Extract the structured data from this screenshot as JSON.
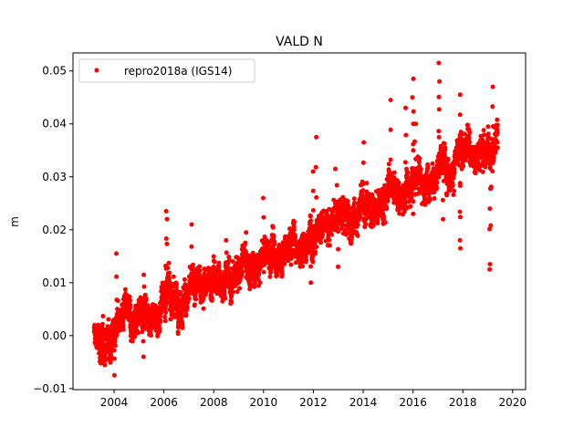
{
  "chart_data": {
    "type": "scatter",
    "title": "VALD N",
    "xlabel": "",
    "ylabel": "m",
    "xlim": [
      2002.35,
      2020.52
    ],
    "ylim": [
      -0.0102,
      0.0534
    ],
    "xticks": [
      2004,
      2006,
      2008,
      2010,
      2012,
      2014,
      2016,
      2018,
      2020
    ],
    "xtick_labels": [
      "2004",
      "2006",
      "2008",
      "2010",
      "2012",
      "2014",
      "2016",
      "2018",
      "2020"
    ],
    "yticks": [
      -0.01,
      0.0,
      0.01,
      0.02,
      0.03,
      0.04,
      0.05
    ],
    "ytick_labels": [
      "−0.01",
      "0.00",
      "0.01",
      "0.02",
      "0.03",
      "0.04",
      "0.05"
    ],
    "grid": false,
    "legend": {
      "placement": "top-left",
      "entries": [
        "repro2018a (IGS14)"
      ]
    },
    "series": [
      {
        "name": "repro2018a (IGS14)",
        "color": "#ff0000",
        "marker": "dot",
        "note": "dense daily series; approximate quarterly center values",
        "trend": [
          [
            2003.2,
            0.0
          ],
          [
            2003.5,
            -0.002
          ],
          [
            2003.75,
            -0.001
          ],
          [
            2004.0,
            0.002
          ],
          [
            2004.25,
            0.003
          ],
          [
            2004.5,
            0.004
          ],
          [
            2004.75,
            0.002
          ],
          [
            2005.0,
            0.004
          ],
          [
            2005.25,
            0.005
          ],
          [
            2005.5,
            0.004
          ],
          [
            2005.75,
            0.003
          ],
          [
            2006.0,
            0.008
          ],
          [
            2006.25,
            0.008
          ],
          [
            2006.5,
            0.007
          ],
          [
            2006.75,
            0.006
          ],
          [
            2007.0,
            0.008
          ],
          [
            2007.25,
            0.009
          ],
          [
            2007.5,
            0.01
          ],
          [
            2007.75,
            0.009
          ],
          [
            2008.0,
            0.011
          ],
          [
            2008.25,
            0.01
          ],
          [
            2008.5,
            0.011
          ],
          [
            2008.75,
            0.01
          ],
          [
            2009.0,
            0.013
          ],
          [
            2009.25,
            0.014
          ],
          [
            2009.5,
            0.012
          ],
          [
            2009.75,
            0.012
          ],
          [
            2010.0,
            0.015
          ],
          [
            2010.25,
            0.016
          ],
          [
            2010.5,
            0.015
          ],
          [
            2010.75,
            0.015
          ],
          [
            2011.0,
            0.017
          ],
          [
            2011.25,
            0.018
          ],
          [
            2011.5,
            0.016
          ],
          [
            2011.75,
            0.018
          ],
          [
            2012.0,
            0.02
          ],
          [
            2012.25,
            0.021
          ],
          [
            2012.5,
            0.02
          ],
          [
            2012.75,
            0.021
          ],
          [
            2013.0,
            0.023
          ],
          [
            2013.25,
            0.023
          ],
          [
            2013.5,
            0.021
          ],
          [
            2013.75,
            0.023
          ],
          [
            2014.0,
            0.025
          ],
          [
            2014.25,
            0.025
          ],
          [
            2014.5,
            0.023
          ],
          [
            2014.75,
            0.025
          ],
          [
            2015.0,
            0.028
          ],
          [
            2015.25,
            0.027
          ],
          [
            2015.5,
            0.026
          ],
          [
            2015.75,
            0.028
          ],
          [
            2016.0,
            0.03
          ],
          [
            2016.25,
            0.03
          ],
          [
            2016.5,
            0.028
          ],
          [
            2016.75,
            0.03
          ],
          [
            2017.0,
            0.032
          ],
          [
            2017.25,
            0.033
          ],
          [
            2017.5,
            0.031
          ],
          [
            2017.75,
            0.033
          ],
          [
            2018.0,
            0.035
          ],
          [
            2018.25,
            0.036
          ],
          [
            2018.5,
            0.034
          ],
          [
            2018.75,
            0.035
          ],
          [
            2019.0,
            0.035
          ],
          [
            2019.25,
            0.036
          ],
          [
            2019.4,
            0.038
          ]
        ],
        "outliers": [
          [
            2004.1,
            0.0155
          ],
          [
            2004.0,
            -0.0075
          ],
          [
            2005.2,
            0.0115
          ],
          [
            2005.2,
            -0.004
          ],
          [
            2006.1,
            0.0235
          ],
          [
            2006.1,
            0.022
          ],
          [
            2007.1,
            0.021
          ],
          [
            2008.5,
            0.018
          ],
          [
            2009.3,
            0.0195
          ],
          [
            2010.0,
            0.026
          ],
          [
            2011.2,
            0.0205
          ],
          [
            2011.9,
            0.01
          ],
          [
            2012.1,
            0.0375
          ],
          [
            2012.0,
            0.031
          ],
          [
            2012.9,
            0.0315
          ],
          [
            2013.0,
            0.013
          ],
          [
            2014.0,
            0.0365
          ],
          [
            2015.1,
            0.0445
          ],
          [
            2015.7,
            0.043
          ],
          [
            2016.0,
            0.0485
          ],
          [
            2016.0,
            0.045
          ],
          [
            2016.1,
            0.04
          ],
          [
            2016.0,
            0.023
          ],
          [
            2017.05,
            0.0515
          ],
          [
            2017.05,
            0.048
          ],
          [
            2017.2,
            0.022
          ],
          [
            2017.9,
            0.0455
          ],
          [
            2017.9,
            0.018
          ],
          [
            2017.9,
            0.0165
          ],
          [
            2019.2,
            0.047
          ],
          [
            2019.1,
            0.0135
          ],
          [
            2019.1,
            0.0125
          ],
          [
            2019.1,
            0.024
          ]
        ]
      }
    ]
  }
}
